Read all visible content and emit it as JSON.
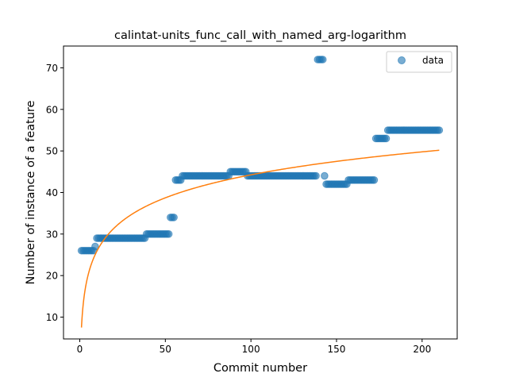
{
  "chart_data": {
    "type": "scatter",
    "title": "calintat-units_func_call_with_named_arg-logarithm",
    "xlabel": "Commit number",
    "ylabel": "Number of instance of a feature",
    "xlim": [
      -9.5,
      220.5
    ],
    "ylim": [
      4.75,
      75.25
    ],
    "xticks": [
      0,
      50,
      100,
      150,
      200
    ],
    "yticks": [
      10,
      20,
      30,
      40,
      50,
      60,
      70
    ],
    "grid": false,
    "legend": {
      "position": "top-right",
      "entries": [
        {
          "label": "data",
          "marker": "circle",
          "color": "#1f77b4"
        }
      ]
    },
    "series": [
      {
        "name": "data",
        "kind": "scatter",
        "color": "#1f77b4",
        "segments": [
          {
            "x_start": 1,
            "x_end": 8,
            "y": 26
          },
          {
            "x_start": 9,
            "x_end": 9,
            "y": 27
          },
          {
            "x_start": 10,
            "x_end": 38,
            "y": 29
          },
          {
            "x_start": 39,
            "x_end": 52,
            "y": 30
          },
          {
            "x_start": 53,
            "x_end": 55,
            "y": 34
          },
          {
            "x_start": 56,
            "x_end": 59,
            "y": 43
          },
          {
            "x_start": 60,
            "x_end": 87,
            "y": 44
          },
          {
            "x_start": 88,
            "x_end": 97,
            "y": 45
          },
          {
            "x_start": 98,
            "x_end": 138,
            "y": 44
          },
          {
            "x_start": 139,
            "x_end": 142,
            "y": 72
          },
          {
            "x_start": 143,
            "x_end": 143,
            "y": 44
          },
          {
            "x_start": 144,
            "x_end": 156,
            "y": 42
          },
          {
            "x_start": 157,
            "x_end": 172,
            "y": 43
          },
          {
            "x_start": 173,
            "x_end": 179,
            "y": 53
          },
          {
            "x_start": 180,
            "x_end": 210,
            "y": 55
          }
        ]
      },
      {
        "name": "fit",
        "kind": "line",
        "color": "#ff7f0e",
        "model": "logarithmic",
        "a": 7.5,
        "b": 7.98,
        "x_range": [
          1,
          210
        ]
      }
    ]
  }
}
